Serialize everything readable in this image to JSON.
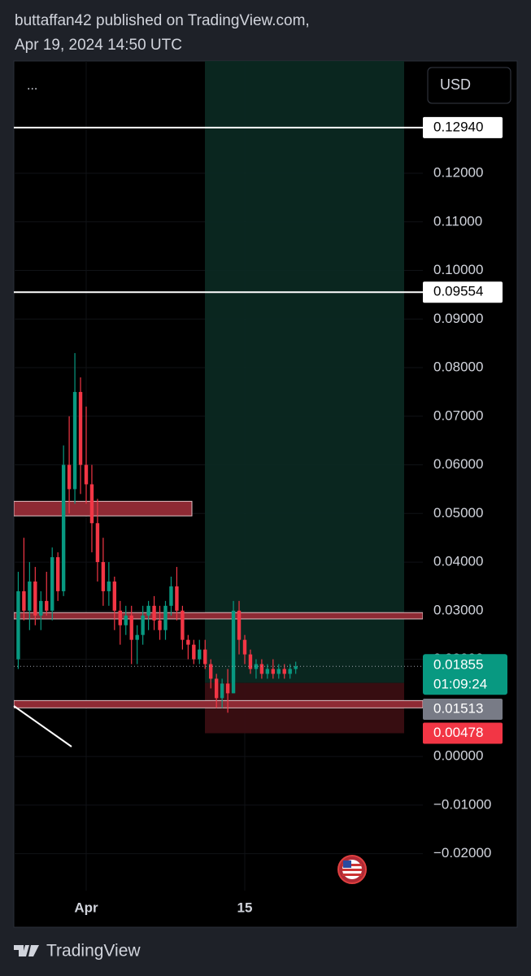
{
  "header": {
    "line1": "buttaffan42 published on TradingView.com,",
    "line2": "Apr 19, 2024 14:50 UTC"
  },
  "footer": "TradingView",
  "chart_data": {
    "type": "candlestick",
    "menu": "...",
    "currency": "USD",
    "categories": [
      null,
      null,
      null,
      null,
      null,
      null,
      null,
      null,
      null,
      null,
      null,
      null,
      "Apr",
      null,
      null,
      null,
      null,
      null,
      null,
      null,
      null,
      null,
      null,
      null,
      null,
      null,
      null,
      null,
      null,
      null,
      null,
      null,
      null,
      null,
      null,
      null,
      null,
      null,
      null,
      null,
      "15",
      null,
      null,
      null,
      null,
      null,
      null,
      null,
      null,
      null
    ],
    "open": [
      0.02,
      0.034,
      0.03,
      0.036,
      0.029,
      0.032,
      0.03,
      0.041,
      0.034,
      0.06,
      0.055,
      0.075,
      0.06,
      0.056,
      0.048,
      0.04,
      0.034,
      0.036,
      0.03,
      0.027,
      0.029,
      0.024,
      0.025,
      0.029,
      0.031,
      0.028,
      0.026,
      0.031,
      0.035,
      0.03,
      0.024,
      0.023,
      0.02,
      0.022,
      0.019,
      0.016,
      0.012,
      0.015,
      0.013,
      0.03,
      0.024,
      0.021,
      0.018,
      0.019,
      0.017,
      0.018,
      0.017,
      0.018,
      0.017,
      0.018
    ],
    "high": [
      0.038,
      0.045,
      0.04,
      0.039,
      0.034,
      0.038,
      0.043,
      0.042,
      0.064,
      0.07,
      0.083,
      0.078,
      0.072,
      0.06,
      0.053,
      0.045,
      0.04,
      0.037,
      0.032,
      0.031,
      0.031,
      0.027,
      0.031,
      0.032,
      0.033,
      0.031,
      0.032,
      0.037,
      0.039,
      0.031,
      0.025,
      0.024,
      0.024,
      0.024,
      0.02,
      0.017,
      0.016,
      0.018,
      0.032,
      0.032,
      0.025,
      0.022,
      0.02,
      0.02,
      0.019,
      0.02,
      0.019,
      0.019,
      0.019,
      0.0195
    ],
    "low": [
      0.018,
      0.028,
      0.026,
      0.027,
      0.026,
      0.029,
      0.028,
      0.032,
      0.033,
      0.05,
      0.052,
      0.054,
      0.052,
      0.042,
      0.036,
      0.031,
      0.031,
      0.026,
      0.023,
      0.025,
      0.019,
      0.019,
      0.023,
      0.026,
      0.026,
      0.024,
      0.024,
      0.029,
      0.028,
      0.022,
      0.02,
      0.019,
      0.019,
      0.018,
      0.014,
      0.01,
      0.01,
      0.009,
      0.013,
      0.021,
      0.019,
      0.017,
      0.016,
      0.016,
      0.016,
      0.016,
      0.016,
      0.016,
      0.016,
      0.017
    ],
    "close": [
      0.034,
      0.03,
      0.036,
      0.029,
      0.032,
      0.03,
      0.041,
      0.034,
      0.06,
      0.055,
      0.075,
      0.06,
      0.056,
      0.048,
      0.04,
      0.034,
      0.036,
      0.03,
      0.027,
      0.029,
      0.024,
      0.025,
      0.029,
      0.031,
      0.028,
      0.026,
      0.031,
      0.035,
      0.03,
      0.024,
      0.023,
      0.02,
      0.022,
      0.019,
      0.016,
      0.012,
      0.015,
      0.013,
      0.03,
      0.024,
      0.021,
      0.018,
      0.019,
      0.017,
      0.018,
      0.017,
      0.018,
      0.017,
      0.018,
      0.01855
    ],
    "up_color": "#089981",
    "down_color": "#f23645",
    "ylim": [
      -0.0276,
      0.1431
    ],
    "yticks": [
      {
        "value": -0.02,
        "label": "−0.02000"
      },
      {
        "value": -0.01,
        "label": "−0.01000"
      },
      {
        "value": 0,
        "label": "0.00000"
      },
      {
        "value": 0.01,
        "label": "0.01000"
      },
      {
        "value": 0.02,
        "label": "0.02000"
      },
      {
        "value": 0.03,
        "label": "0.03000"
      },
      {
        "value": 0.04,
        "label": "0.04000"
      },
      {
        "value": 0.05,
        "label": "0.05000"
      },
      {
        "value": 0.06,
        "label": "0.06000"
      },
      {
        "value": 0.07,
        "label": "0.07000"
      },
      {
        "value": 0.08,
        "label": "0.08000"
      },
      {
        "value": 0.09,
        "label": "0.09000"
      },
      {
        "value": 0.1,
        "label": "0.10000"
      },
      {
        "value": 0.11,
        "label": "0.11000"
      },
      {
        "value": 0.12,
        "label": "0.12000"
      }
    ],
    "grid": true,
    "price_lines": [
      {
        "value": 0.1294,
        "label": "0.12940",
        "color": "#ffffff"
      },
      {
        "value": 0.09554,
        "label": "0.09554",
        "color": "#ffffff"
      }
    ],
    "zones": [
      {
        "low": 0.0495,
        "high": 0.0525,
        "color": "#8e2a34",
        "span": "partial"
      },
      {
        "low": 0.0283,
        "high": 0.0296,
        "color": "#8e2a34",
        "span": "full"
      },
      {
        "low": 0.01,
        "high": 0.0115,
        "color": "#8e2a34",
        "span": "full"
      }
    ],
    "position": {
      "entry": {
        "value": 0.01513,
        "label": "0.01513",
        "color": "#787b86"
      },
      "stop": {
        "value": 0.00478,
        "label": "0.00478",
        "color": "#f23645"
      }
    },
    "last_price": {
      "value": 0.01855,
      "label": "0.01855",
      "countdown": "01:09:24",
      "color": "#089981"
    }
  }
}
